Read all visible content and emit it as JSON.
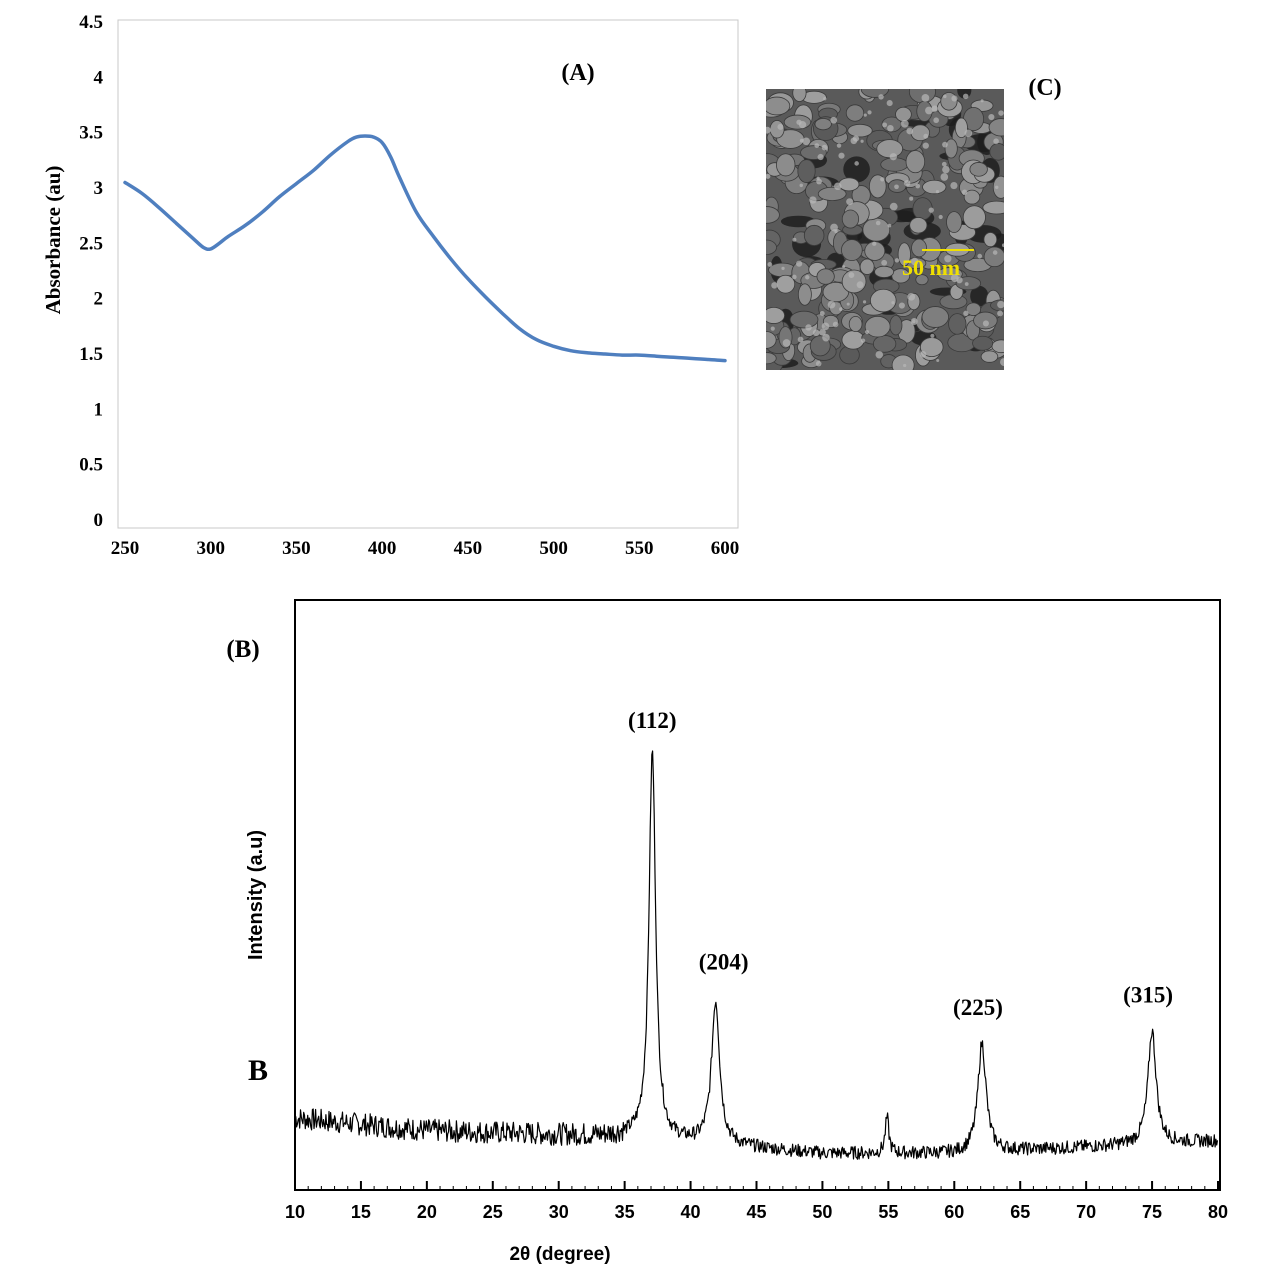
{
  "chart_data": [
    {
      "type": "line",
      "panel_label": "(A)",
      "title": "",
      "xlabel": "",
      "ylabel": "Absorbance (au)",
      "xlim": [
        250,
        600
      ],
      "ylim": [
        0,
        4.5
      ],
      "x_ticks": [
        "250",
        "300",
        "350",
        "400",
        "450",
        "500",
        "550",
        "600"
      ],
      "y_ticks": [
        "0",
        "0.5",
        "1",
        "1.5",
        "2",
        "2.5",
        "3",
        "3.5",
        "4",
        "4.5"
      ],
      "grid": false,
      "line_color": "#4f7fbf",
      "series": [
        {
          "x": [
            250,
            260,
            270,
            280,
            290,
            296,
            300,
            305,
            310,
            320,
            330,
            340,
            350,
            360,
            370,
            380,
            385,
            390,
            395,
            400,
            405,
            410,
            420,
            430,
            440,
            450,
            460,
            470,
            480,
            490,
            500,
            510,
            520,
            530,
            540,
            550,
            560,
            570,
            580,
            590,
            600
          ],
          "y": [
            3.05,
            2.95,
            2.82,
            2.68,
            2.54,
            2.46,
            2.45,
            2.5,
            2.56,
            2.66,
            2.78,
            2.92,
            3.04,
            3.16,
            3.3,
            3.42,
            3.46,
            3.47,
            3.46,
            3.41,
            3.28,
            3.1,
            2.78,
            2.56,
            2.36,
            2.18,
            2.02,
            1.87,
            1.73,
            1.63,
            1.57,
            1.53,
            1.51,
            1.5,
            1.49,
            1.49,
            1.48,
            1.47,
            1.46,
            1.45,
            1.44
          ]
        }
      ]
    },
    {
      "type": "line",
      "panel_label": "(B)",
      "side_label": "B",
      "title": "",
      "xlabel": "2θ (degree)",
      "ylabel": "Intensity (a.u)",
      "xlim": [
        10,
        80
      ],
      "ylim": [
        0,
        100
      ],
      "x_ticks": [
        "10",
        "15",
        "20",
        "25",
        "30",
        "35",
        "40",
        "45",
        "50",
        "55",
        "60",
        "65",
        "70",
        "75",
        "80"
      ],
      "grid": false,
      "line_color": "#000000",
      "baseline": [
        [
          10,
          12
        ],
        [
          20,
          9
        ],
        [
          30,
          8
        ],
        [
          35,
          7.5
        ],
        [
          40,
          6
        ],
        [
          50,
          3.5
        ],
        [
          60,
          3.5
        ],
        [
          70,
          5
        ],
        [
          80,
          6.5
        ]
      ],
      "peaks": [
        {
          "x": 37.1,
          "y": 100,
          "width": 0.45,
          "label": "(112)"
        },
        {
          "x": 41.9,
          "y": 40,
          "width": 0.55,
          "label": "(204)"
        },
        {
          "x": 54.9,
          "y": 12,
          "width": 0.25,
          "label": ""
        },
        {
          "x": 62.1,
          "y": 30,
          "width": 0.55,
          "label": "(225)"
        },
        {
          "x": 75.0,
          "y": 33,
          "width": 0.55,
          "label": "(315)"
        }
      ]
    }
  ],
  "sem_image": {
    "panel_label": "(C)",
    "scale_bar_label": "50 nm",
    "scale_bar_color": "#f0e000"
  }
}
